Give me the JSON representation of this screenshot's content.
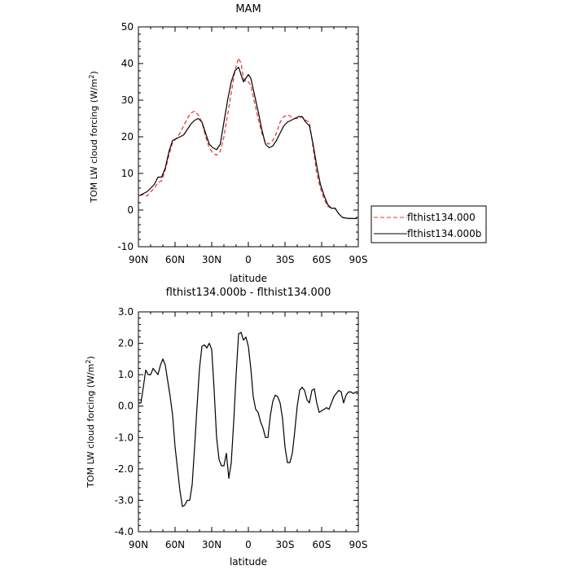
{
  "chart_data": [
    {
      "type": "line",
      "title": "MAM",
      "xlabel": "latitude",
      "ylabel": "TOM LW cloud forcing (W/m",
      "ylabel_sup": "2",
      "ylabel_end": ")",
      "xlim": [
        -90,
        90
      ],
      "ylim": [
        -10,
        50
      ],
      "x_ticks": [
        -90,
        -60,
        -30,
        0,
        30,
        60,
        90
      ],
      "x_tick_labels": [
        "90N",
        "60N",
        "30N",
        "0",
        "30S",
        "60S",
        "90S"
      ],
      "y_ticks": [
        -10,
        0,
        10,
        20,
        30,
        40,
        50
      ],
      "y_tick_labels": [
        "-10",
        "0",
        "10",
        "20",
        "30",
        "40",
        "50"
      ],
      "legend_position": "right",
      "series": [
        {
          "name": "flthist134.000",
          "color": "#e8302b",
          "style": "dashed",
          "x": [
            -89,
            -86,
            -83,
            -80,
            -77,
            -74,
            -71,
            -68,
            -65,
            -62,
            -59,
            -56,
            -53,
            -50,
            -47,
            -44,
            -41,
            -38,
            -35,
            -32,
            -29,
            -26,
            -23,
            -20,
            -17,
            -14,
            -11,
            -8,
            -6,
            -4,
            -2,
            0,
            2,
            4,
            6,
            8,
            11,
            14,
            17,
            20,
            23,
            26,
            29,
            32,
            35,
            38,
            41,
            44,
            47,
            50,
            53,
            56,
            59,
            62,
            65,
            68,
            71,
            74,
            77,
            80,
            83,
            86,
            89
          ],
          "y": [
            4.0,
            4.2,
            3.8,
            5.0,
            6.0,
            7.5,
            8.0,
            11.0,
            15.0,
            18.5,
            19.5,
            21.0,
            23.0,
            25.0,
            26.5,
            27.0,
            26.0,
            24.0,
            20.0,
            17.0,
            15.5,
            15.0,
            16.0,
            20.0,
            26.0,
            32.0,
            38.0,
            41.5,
            40.0,
            36.0,
            35.0,
            35.0,
            34.0,
            31.0,
            28.0,
            25.0,
            21.0,
            18.5,
            18.0,
            19.0,
            21.0,
            24.0,
            25.5,
            26.0,
            25.5,
            25.0,
            25.0,
            25.5,
            24.5,
            24.0,
            17.0,
            10.0,
            6.0,
            3.0,
            1.0,
            0.5,
            0.5,
            -1.0,
            -2.0,
            -2.2,
            -2.3,
            -2.3,
            -2.3
          ]
        },
        {
          "name": "flthist134.000b",
          "color": "#000000",
          "style": "solid",
          "x": [
            -89,
            -86,
            -83,
            -80,
            -77,
            -74,
            -71,
            -68,
            -65,
            -62,
            -59,
            -56,
            -53,
            -50,
            -47,
            -44,
            -41,
            -38,
            -35,
            -32,
            -29,
            -26,
            -23,
            -20,
            -17,
            -14,
            -11,
            -8,
            -6,
            -4,
            -2,
            0,
            2,
            4,
            6,
            8,
            11,
            14,
            17,
            20,
            23,
            26,
            29,
            32,
            35,
            38,
            41,
            44,
            47,
            50,
            53,
            56,
            59,
            62,
            65,
            68,
            71,
            74,
            77,
            80,
            83,
            86,
            89
          ],
          "y": [
            4.0,
            4.5,
            5.0,
            6.0,
            7.0,
            9.0,
            9.0,
            11.5,
            16.0,
            19.0,
            19.5,
            20.0,
            20.5,
            22.0,
            23.5,
            24.5,
            25.0,
            24.0,
            21.0,
            18.0,
            17.0,
            16.5,
            18.0,
            24.0,
            30.0,
            35.0,
            38.0,
            39.0,
            37.0,
            35.0,
            36.0,
            37.0,
            36.0,
            33.0,
            30.0,
            27.0,
            22.0,
            18.0,
            17.0,
            17.5,
            19.0,
            21.0,
            23.0,
            24.0,
            24.5,
            25.0,
            25.5,
            25.5,
            24.0,
            23.0,
            18.0,
            12.0,
            7.0,
            4.0,
            1.5,
            0.5,
            0.5,
            -1.0,
            -2.0,
            -2.2,
            -2.3,
            -2.3,
            -2.3
          ]
        }
      ]
    },
    {
      "type": "line",
      "title": "flthist134.000b - flthist134.000",
      "xlabel": "latitude",
      "ylabel": "TOM LW cloud forcing (W/m",
      "ylabel_sup": "2",
      "ylabel_end": ")",
      "xlim": [
        -90,
        90
      ],
      "ylim": [
        -4.0,
        3.0
      ],
      "x_ticks": [
        -90,
        -60,
        -30,
        0,
        30,
        60,
        90
      ],
      "x_tick_labels": [
        "90N",
        "60N",
        "30N",
        "0",
        "30S",
        "60S",
        "90S"
      ],
      "y_ticks": [
        -4,
        -3,
        -2,
        -1,
        0,
        1,
        2,
        3
      ],
      "y_tick_labels": [
        "-4.0",
        "-3.0",
        "-2.0",
        "-1.0",
        "0.0",
        "1.0",
        "2.0",
        "3.0"
      ],
      "series": [
        {
          "color": "#000000",
          "style": "solid",
          "x": [
            -90,
            -88,
            -86,
            -84,
            -82,
            -80,
            -78,
            -76,
            -74,
            -72,
            -70,
            -68,
            -66,
            -64,
            -62,
            -60,
            -58,
            -56,
            -54,
            -52,
            -50,
            -48,
            -46,
            -44,
            -42,
            -40,
            -38,
            -36,
            -34,
            -32,
            -30,
            -28,
            -26,
            -24,
            -22,
            -20,
            -18,
            -16,
            -14,
            -12,
            -10,
            -8,
            -6,
            -4,
            -2,
            0,
            2,
            4,
            6,
            8,
            10,
            12,
            14,
            16,
            18,
            20,
            22,
            24,
            26,
            28,
            30,
            32,
            34,
            36,
            38,
            40,
            42,
            44,
            46,
            48,
            50,
            52,
            54,
            56,
            58,
            60,
            62,
            64,
            66,
            68,
            70,
            72,
            74,
            76,
            78,
            80,
            82,
            84,
            86,
            88,
            90
          ],
          "y": [
            0.1,
            0.1,
            0.6,
            1.15,
            1.0,
            1.0,
            1.2,
            1.1,
            1.0,
            1.3,
            1.5,
            1.3,
            0.8,
            0.3,
            -0.3,
            -1.3,
            -2.0,
            -2.7,
            -3.2,
            -3.15,
            -3.0,
            -3.0,
            -2.5,
            -1.3,
            0.0,
            1.2,
            1.9,
            1.95,
            1.85,
            2.0,
            1.8,
            0.5,
            -1.0,
            -1.7,
            -1.9,
            -1.9,
            -1.5,
            -2.3,
            -1.8,
            -0.5,
            1.0,
            2.3,
            2.35,
            2.1,
            2.2,
            1.9,
            1.2,
            0.3,
            -0.1,
            -0.2,
            -0.5,
            -0.7,
            -1.0,
            -1.0,
            -0.3,
            0.15,
            0.35,
            0.3,
            0.1,
            -0.4,
            -1.3,
            -1.8,
            -1.8,
            -1.5,
            -0.8,
            0.0,
            0.5,
            0.6,
            0.5,
            0.2,
            0.1,
            0.5,
            0.55,
            0.1,
            -0.2,
            -0.15,
            -0.1,
            -0.05,
            -0.1,
            0.1,
            0.3,
            0.4,
            0.5,
            0.45,
            0.1,
            0.35,
            0.45,
            0.45,
            0.4,
            0.45,
            0.45
          ]
        }
      ]
    }
  ]
}
